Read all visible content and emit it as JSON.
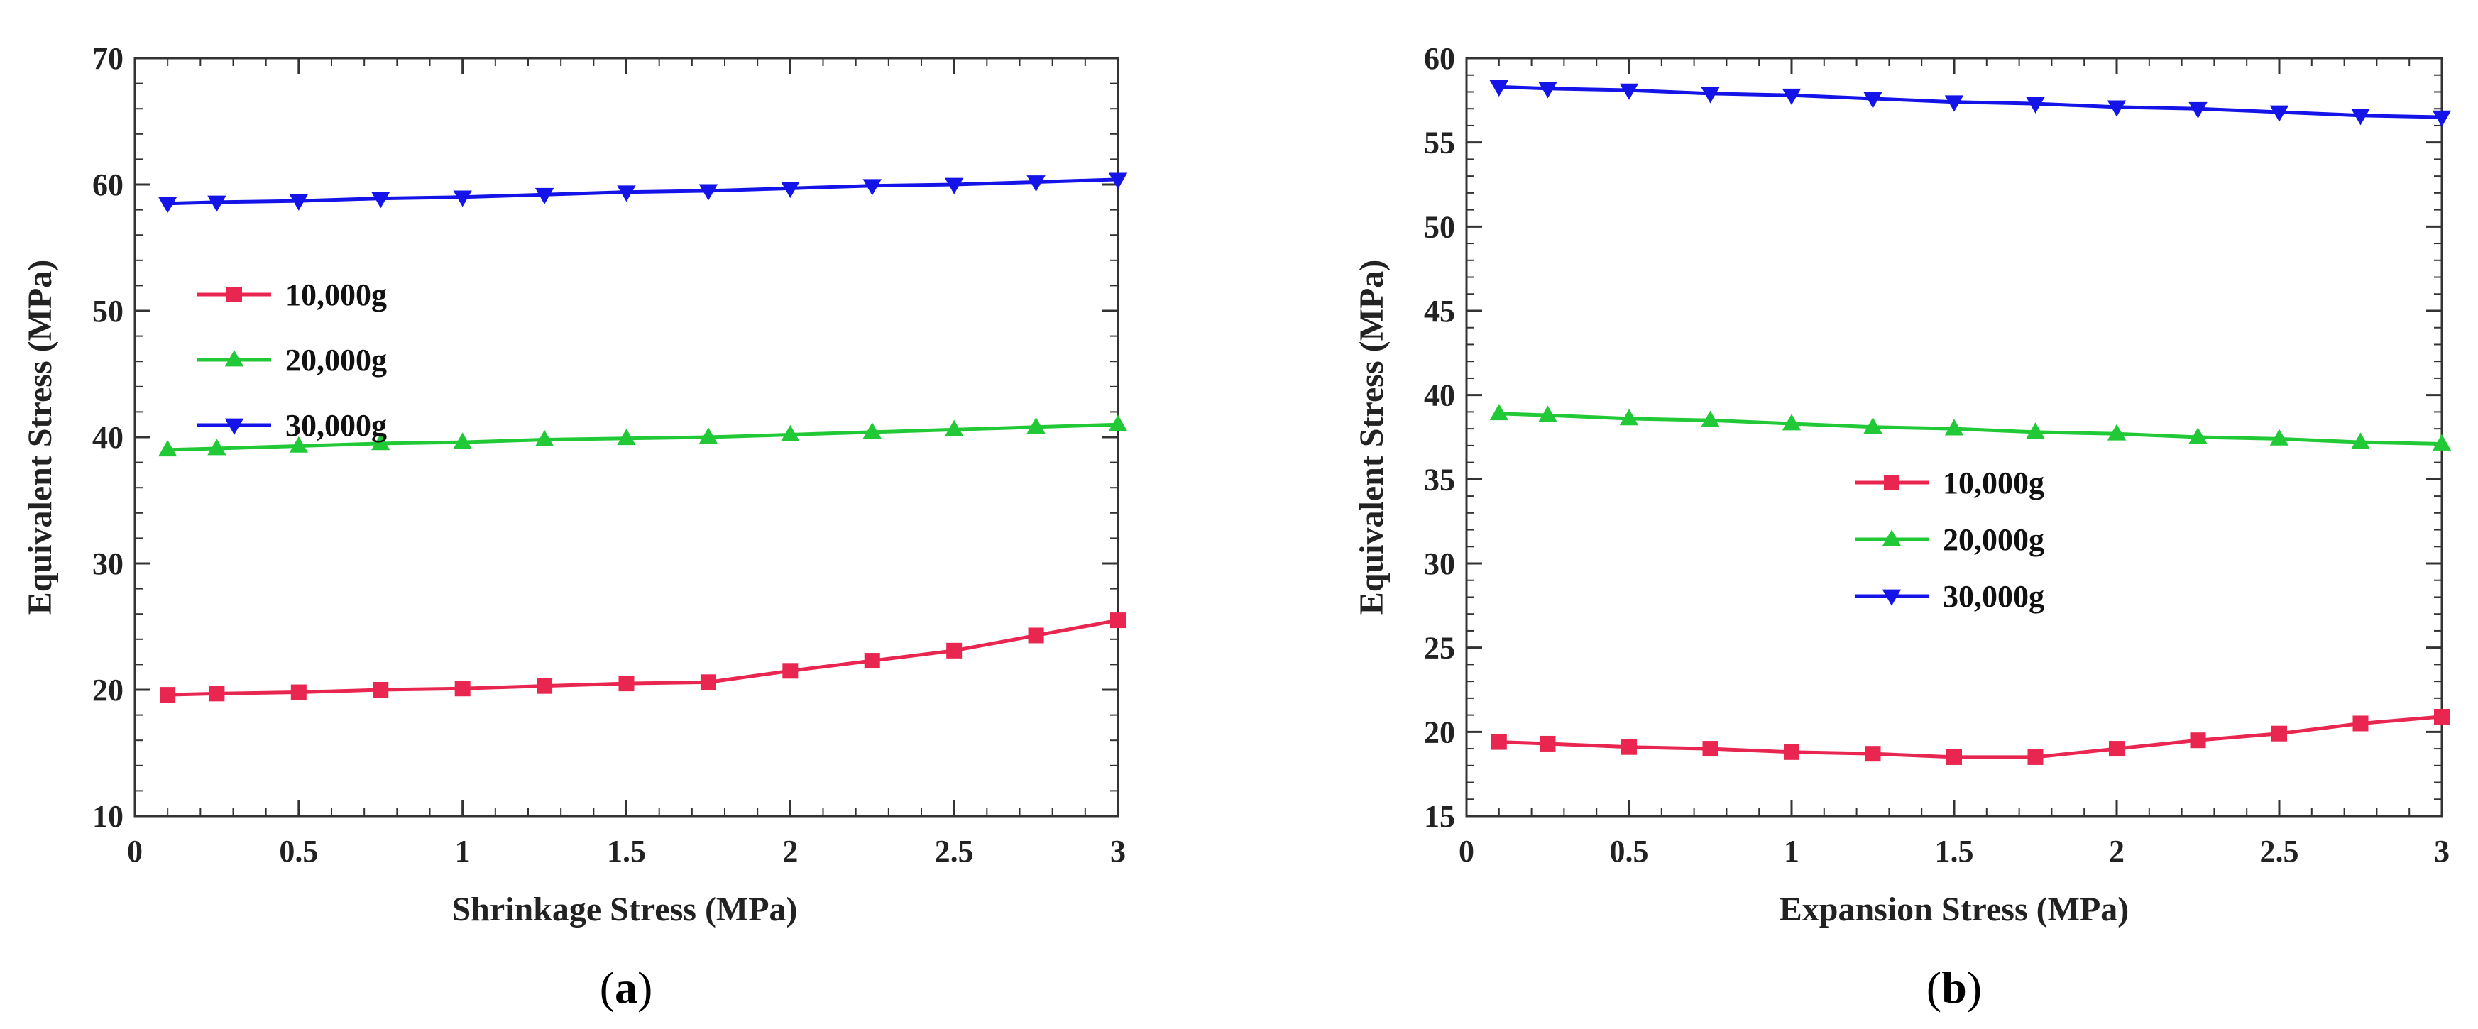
{
  "chart_data": [
    {
      "type": "line",
      "caption": {
        "pre": "(",
        "letter": "a",
        "post": ")"
      },
      "xlabel": "Shrinkage Stress (MPa)",
      "ylabel": "Equivalent Stress (MPa)",
      "xlim": [
        0,
        3
      ],
      "ylim": [
        10,
        70
      ],
      "xticks": [
        0,
        0.5,
        1,
        1.5,
        2,
        2.5,
        3
      ],
      "xtick_labels": [
        "0",
        "0.5",
        "1",
        "1.5",
        "2",
        "2.5",
        "3"
      ],
      "yticks": [
        10,
        20,
        30,
        40,
        50,
        60,
        70
      ],
      "ytick_labels": [
        "10",
        "20",
        "30",
        "40",
        "50",
        "60",
        "70"
      ],
      "grid": false,
      "legend_position": "middle-left",
      "x": [
        0.1,
        0.25,
        0.5,
        0.75,
        1,
        1.25,
        1.5,
        1.75,
        2,
        2.25,
        2.5,
        2.75,
        3
      ],
      "series": [
        {
          "name": "10,000g",
          "color": "#e8264f",
          "marker": "square",
          "values": [
            19.6,
            19.7,
            19.8,
            20.0,
            20.1,
            20.3,
            20.5,
            20.6,
            21.5,
            22.3,
            23.1,
            24.3,
            25.5
          ]
        },
        {
          "name": "20,000g",
          "color": "#21c936",
          "marker": "triangle-up",
          "values": [
            39.0,
            39.1,
            39.3,
            39.5,
            39.6,
            39.8,
            39.9,
            40.0,
            40.2,
            40.4,
            40.6,
            40.8,
            41.0
          ]
        },
        {
          "name": "30,000g",
          "color": "#1414e8",
          "marker": "triangle-down",
          "values": [
            58.5,
            58.6,
            58.7,
            58.9,
            59.0,
            59.2,
            59.4,
            59.5,
            59.7,
            59.9,
            60.0,
            60.2,
            60.4
          ]
        }
      ]
    },
    {
      "type": "line",
      "caption": {
        "pre": "(",
        "letter": "b",
        "post": ")"
      },
      "xlabel": "Expansion Stress (MPa)",
      "ylabel": "Equivalent Stress (MPa)",
      "xlim": [
        0,
        3
      ],
      "ylim": [
        15,
        60
      ],
      "xticks": [
        0,
        0.5,
        1,
        1.5,
        2,
        2.5,
        3
      ],
      "xtick_labels": [
        "0",
        "0.5",
        "1",
        "1.5",
        "2",
        "2.5",
        "3"
      ],
      "yticks": [
        15,
        20,
        25,
        30,
        35,
        40,
        45,
        50,
        55,
        60
      ],
      "ytick_labels": [
        "15",
        "20",
        "25",
        "30",
        "35",
        "40",
        "45",
        "50",
        "55",
        "60"
      ],
      "grid": false,
      "legend_position": "center",
      "x": [
        0.1,
        0.25,
        0.5,
        0.75,
        1,
        1.25,
        1.5,
        1.75,
        2,
        2.25,
        2.5,
        2.75,
        3
      ],
      "series": [
        {
          "name": "10,000g",
          "color": "#e8264f",
          "marker": "square",
          "values": [
            19.4,
            19.3,
            19.1,
            19.0,
            18.8,
            18.7,
            18.5,
            18.5,
            19.0,
            19.5,
            19.9,
            20.5,
            20.9
          ]
        },
        {
          "name": "20,000g",
          "color": "#21c936",
          "marker": "triangle-up",
          "values": [
            38.9,
            38.8,
            38.6,
            38.5,
            38.3,
            38.1,
            38.0,
            37.8,
            37.7,
            37.5,
            37.4,
            37.2,
            37.1
          ]
        },
        {
          "name": "30,000g",
          "color": "#1414e8",
          "marker": "triangle-down",
          "values": [
            58.3,
            58.2,
            58.1,
            57.9,
            57.8,
            57.6,
            57.4,
            57.3,
            57.1,
            57.0,
            56.8,
            56.6,
            56.5
          ]
        }
      ]
    }
  ]
}
